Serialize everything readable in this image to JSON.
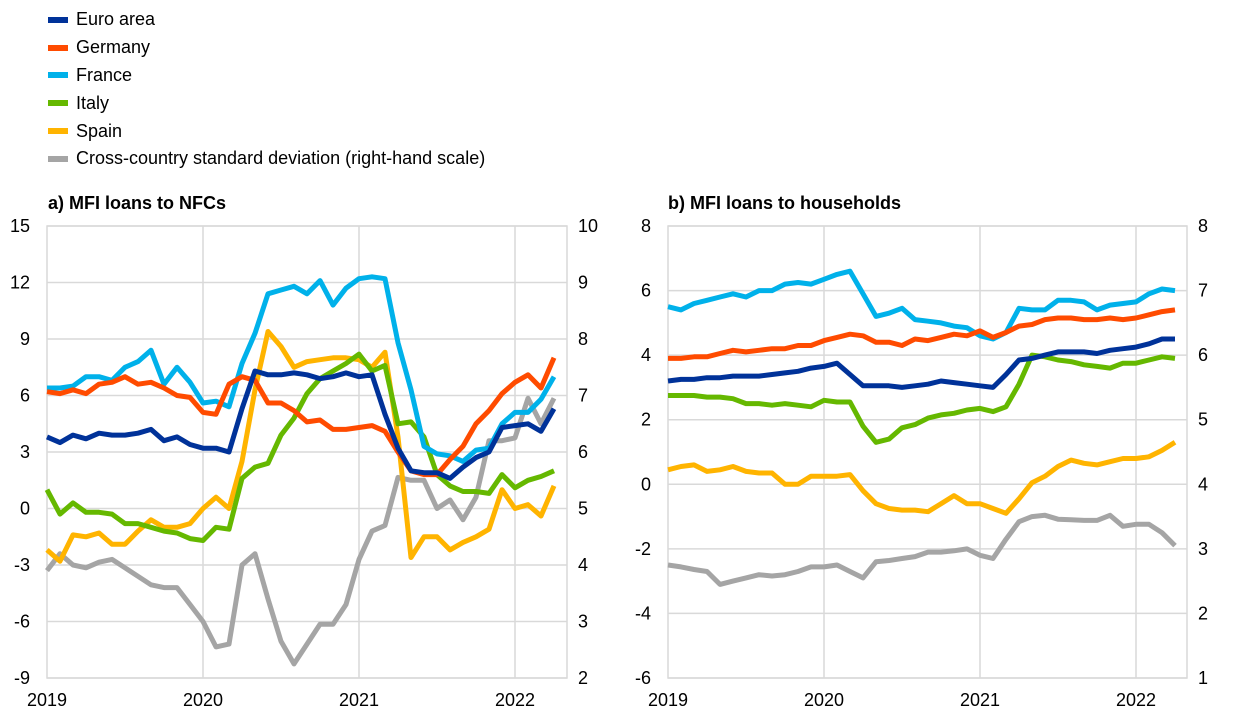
{
  "legend": [
    {
      "label": "Euro area",
      "color": "#003299"
    },
    {
      "label": "Germany",
      "color": "#ff4b00"
    },
    {
      "label": "France",
      "color": "#00b1ea"
    },
    {
      "label": "Italy",
      "color": "#65b800"
    },
    {
      "label": "Spain",
      "color": "#ffb400"
    },
    {
      "label": "Cross-country standard deviation (right-hand scale)",
      "color": "#a5a5a5"
    }
  ],
  "chart_data": [
    {
      "type": "line",
      "title": "a) MFI loans to NFCs",
      "x_start": "2019-01",
      "frequency": "monthly",
      "xticks": [
        "2019",
        "2020",
        "2021",
        "2022"
      ],
      "ylim": [
        -9,
        15
      ],
      "yticks": [
        15,
        12,
        9,
        6,
        3,
        0,
        -3,
        -6,
        -9
      ],
      "y2lim": [
        2,
        10
      ],
      "y2ticks": [
        10,
        9,
        8,
        7,
        6,
        5,
        4,
        3,
        2
      ],
      "series": [
        {
          "name": "Euro area",
          "axis": "left",
          "values": [
            3.8,
            3.5,
            3.9,
            3.7,
            4.0,
            3.9,
            3.9,
            4.0,
            4.2,
            3.6,
            3.8,
            3.4,
            3.2,
            3.2,
            3.0,
            5.3,
            7.3,
            7.1,
            7.1,
            7.2,
            7.1,
            6.9,
            7.0,
            7.2,
            7.0,
            7.1,
            5.0,
            3.2,
            2.0,
            1.9,
            1.9,
            1.6,
            2.2,
            2.7,
            3.0,
            4.3,
            4.4,
            4.5,
            4.1,
            5.3
          ]
        },
        {
          "name": "Germany",
          "axis": "left",
          "values": [
            6.2,
            6.1,
            6.3,
            6.1,
            6.6,
            6.7,
            7.0,
            6.6,
            6.7,
            6.4,
            6.0,
            5.9,
            5.1,
            5.0,
            6.6,
            7.0,
            6.8,
            5.6,
            5.6,
            5.2,
            4.6,
            4.7,
            4.2,
            4.2,
            4.3,
            4.4,
            4.1,
            3.0,
            2.0,
            1.8,
            1.8,
            2.6,
            3.3,
            4.5,
            5.2,
            6.1,
            6.7,
            7.1,
            6.4,
            8.0
          ]
        },
        {
          "name": "France",
          "axis": "left",
          "values": [
            6.4,
            6.4,
            6.5,
            7.0,
            7.0,
            6.8,
            7.5,
            7.8,
            8.4,
            6.6,
            7.5,
            6.7,
            5.6,
            5.7,
            5.4,
            7.7,
            9.3,
            11.4,
            11.6,
            11.8,
            11.4,
            12.1,
            10.8,
            11.7,
            12.2,
            12.3,
            12.2,
            8.8,
            6.3,
            3.3,
            2.9,
            2.8,
            2.5,
            3.1,
            3.2,
            4.5,
            5.1,
            5.1,
            5.8,
            7.0
          ]
        },
        {
          "name": "Italy",
          "axis": "left",
          "values": [
            1.0,
            -0.3,
            0.3,
            -0.2,
            -0.2,
            -0.3,
            -0.8,
            -0.8,
            -1.0,
            -1.2,
            -1.3,
            -1.6,
            -1.7,
            -1.0,
            -1.1,
            1.6,
            2.2,
            2.4,
            3.9,
            4.8,
            6.1,
            6.9,
            7.3,
            7.7,
            8.2,
            7.3,
            7.6,
            4.5,
            4.6,
            3.8,
            1.8,
            1.2,
            0.9,
            0.9,
            0.8,
            1.8,
            1.1,
            1.5,
            1.7,
            2.0
          ]
        },
        {
          "name": "Spain",
          "axis": "left",
          "values": [
            -2.2,
            -2.8,
            -1.4,
            -1.5,
            -1.3,
            -1.9,
            -1.9,
            -1.2,
            -0.6,
            -1.0,
            -1.0,
            -0.8,
            0.0,
            0.6,
            0.0,
            2.5,
            6.3,
            9.4,
            8.6,
            7.5,
            7.8,
            7.9,
            8.0,
            8.0,
            7.9,
            7.5,
            8.3,
            3.8,
            -2.6,
            -1.5,
            -1.5,
            -2.2,
            -1.8,
            -1.5,
            -1.1,
            1.0,
            0.0,
            0.2,
            -0.4,
            1.2
          ]
        },
        {
          "name": "Cross-country standard deviation (right-hand scale)",
          "axis": "right",
          "values": [
            3.9,
            4.2,
            4.0,
            3.95,
            4.05,
            4.1,
            3.95,
            3.8,
            3.65,
            3.6,
            3.6,
            3.3,
            3.0,
            2.55,
            2.6,
            4.0,
            4.2,
            3.4,
            2.65,
            2.25,
            2.6,
            2.95,
            2.95,
            3.3,
            4.1,
            4.6,
            4.7,
            5.55,
            5.5,
            5.5,
            5.0,
            5.15,
            4.8,
            5.2,
            6.2,
            6.2,
            6.25,
            6.95,
            6.5,
            6.95
          ]
        }
      ]
    },
    {
      "type": "line",
      "title": "b) MFI loans to households",
      "x_start": "2019-01",
      "frequency": "monthly",
      "xticks": [
        "2019",
        "2020",
        "2021",
        "2022"
      ],
      "ylim": [
        -6,
        8
      ],
      "yticks": [
        8,
        6,
        4,
        2,
        0,
        -2,
        -4,
        -6
      ],
      "y2lim": [
        1,
        8
      ],
      "y2ticks": [
        8,
        7,
        6,
        5,
        4,
        3,
        2,
        1
      ],
      "series": [
        {
          "name": "Euro area",
          "axis": "left",
          "values": [
            3.2,
            3.25,
            3.25,
            3.3,
            3.3,
            3.35,
            3.35,
            3.35,
            3.4,
            3.45,
            3.5,
            3.6,
            3.65,
            3.75,
            3.4,
            3.05,
            3.05,
            3.05,
            3.0,
            3.05,
            3.1,
            3.2,
            3.15,
            3.1,
            3.05,
            3.0,
            3.4,
            3.85,
            3.9,
            4.0,
            4.1,
            4.1,
            4.1,
            4.05,
            4.15,
            4.2,
            4.25,
            4.35,
            4.5,
            4.5
          ]
        },
        {
          "name": "Germany",
          "axis": "left",
          "values": [
            3.9,
            3.9,
            3.95,
            3.95,
            4.05,
            4.15,
            4.1,
            4.15,
            4.2,
            4.2,
            4.3,
            4.3,
            4.45,
            4.55,
            4.65,
            4.6,
            4.4,
            4.4,
            4.3,
            4.5,
            4.45,
            4.55,
            4.65,
            4.6,
            4.75,
            4.55,
            4.7,
            4.9,
            4.95,
            5.1,
            5.15,
            5.15,
            5.1,
            5.1,
            5.15,
            5.1,
            5.15,
            5.25,
            5.35,
            5.4
          ]
        },
        {
          "name": "France",
          "axis": "left",
          "values": [
            5.5,
            5.4,
            5.6,
            5.7,
            5.8,
            5.9,
            5.8,
            6.0,
            6.0,
            6.2,
            6.25,
            6.2,
            6.35,
            6.5,
            6.6,
            5.9,
            5.2,
            5.3,
            5.45,
            5.1,
            5.05,
            5.0,
            4.9,
            4.85,
            4.6,
            4.5,
            4.7,
            5.45,
            5.4,
            5.4,
            5.7,
            5.7,
            5.65,
            5.4,
            5.55,
            5.6,
            5.65,
            5.9,
            6.05,
            6.0
          ]
        },
        {
          "name": "Italy",
          "axis": "left",
          "values": [
            2.75,
            2.75,
            2.75,
            2.7,
            2.7,
            2.65,
            2.5,
            2.5,
            2.45,
            2.5,
            2.45,
            2.4,
            2.6,
            2.55,
            2.55,
            1.8,
            1.3,
            1.4,
            1.75,
            1.85,
            2.05,
            2.15,
            2.2,
            2.3,
            2.35,
            2.25,
            2.4,
            3.1,
            4.0,
            3.95,
            3.85,
            3.8,
            3.7,
            3.65,
            3.6,
            3.75,
            3.75,
            3.85,
            3.95,
            3.9
          ]
        },
        {
          "name": "Spain",
          "axis": "left",
          "values": [
            0.45,
            0.55,
            0.6,
            0.4,
            0.45,
            0.55,
            0.4,
            0.35,
            0.35,
            0.0,
            0.0,
            0.25,
            0.25,
            0.25,
            0.3,
            -0.2,
            -0.6,
            -0.75,
            -0.8,
            -0.8,
            -0.85,
            -0.6,
            -0.35,
            -0.6,
            -0.6,
            -0.75,
            -0.9,
            -0.45,
            0.05,
            0.25,
            0.55,
            0.75,
            0.65,
            0.6,
            0.7,
            0.8,
            0.8,
            0.85,
            1.05,
            1.3
          ]
        },
        {
          "name": "Cross-country standard deviation (right-hand scale)",
          "axis": "right",
          "values": [
            2.75,
            2.72,
            2.68,
            2.65,
            2.45,
            2.5,
            2.55,
            2.6,
            2.58,
            2.6,
            2.65,
            2.72,
            2.72,
            2.75,
            2.65,
            2.55,
            2.8,
            2.82,
            2.85,
            2.88,
            2.95,
            2.95,
            2.97,
            3.0,
            2.9,
            2.85,
            3.15,
            3.42,
            3.5,
            3.52,
            3.46,
            3.45,
            3.44,
            3.44,
            3.52,
            3.35,
            3.38,
            3.38,
            3.25,
            3.05
          ]
        }
      ]
    }
  ]
}
